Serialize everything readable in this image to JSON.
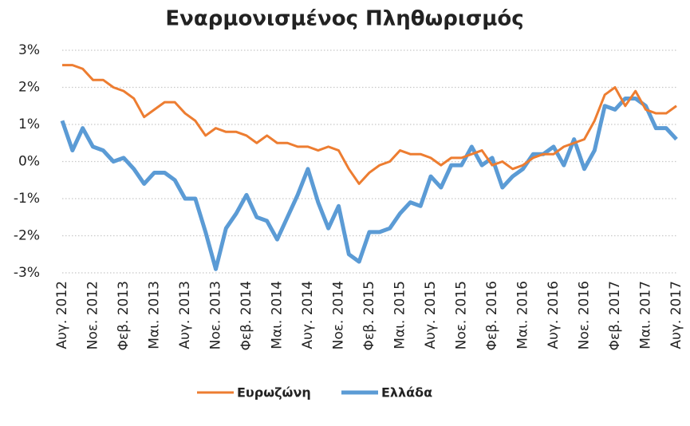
{
  "chart_data": {
    "type": "line",
    "title": "Εναρμονισμένος Πληθωρισμός",
    "categories": [
      "Αυγ. 2012",
      null,
      null,
      "Νοε. 2012",
      null,
      null,
      "Φεβ. 2013",
      null,
      null,
      "Μαι. 2013",
      null,
      null,
      "Αυγ. 2013",
      null,
      null,
      "Νοε. 2013",
      null,
      null,
      "Φεβ. 2014",
      null,
      null,
      "Μαι. 2014",
      null,
      null,
      "Αυγ. 2014",
      null,
      null,
      "Νοε. 2014",
      null,
      null,
      "Φεβ. 2015",
      null,
      null,
      "Μαι. 2015",
      null,
      null,
      "Αυγ. 2015",
      null,
      null,
      "Νοε. 2015",
      null,
      null,
      "Φεβ. 2016",
      null,
      null,
      "Μαι. 2016",
      null,
      null,
      "Αυγ. 2016",
      null,
      null,
      "Νοε. 2016",
      null,
      null,
      "Φεβ. 2017",
      null,
      null,
      "Μαι. 2017",
      null,
      null,
      "Αυγ. 2017"
    ],
    "series": [
      {
        "name": "Ευρωζώνη",
        "color": "#ed7d31",
        "values": [
          2.6,
          2.6,
          2.5,
          2.2,
          2.2,
          2.0,
          1.9,
          1.7,
          1.2,
          1.4,
          1.6,
          1.6,
          1.3,
          1.1,
          0.7,
          0.9,
          0.8,
          0.8,
          0.7,
          0.5,
          0.7,
          0.5,
          0.5,
          0.4,
          0.4,
          0.3,
          0.4,
          0.3,
          -0.2,
          -0.6,
          -0.3,
          -0.1,
          0.0,
          0.3,
          0.2,
          0.2,
          0.1,
          -0.1,
          0.1,
          0.1,
          0.2,
          0.3,
          -0.1,
          0.0,
          -0.2,
          -0.1,
          0.1,
          0.2,
          0.2,
          0.4,
          0.5,
          0.6,
          1.1,
          1.8,
          2.0,
          1.5,
          1.9,
          1.4,
          1.3,
          1.3,
          1.5
        ]
      },
      {
        "name": "Ελλάδα",
        "color": "#5b9bd5",
        "values": [
          1.1,
          0.3,
          0.9,
          0.4,
          0.3,
          0.0,
          0.1,
          -0.2,
          -0.6,
          -0.3,
          -0.3,
          -0.5,
          -1.0,
          -1.0,
          -1.9,
          -2.9,
          -1.8,
          -1.4,
          -0.9,
          -1.5,
          -1.6,
          -2.1,
          -1.5,
          -0.9,
          -0.2,
          -1.1,
          -1.8,
          -1.2,
          -2.5,
          -2.7,
          -1.9,
          -1.9,
          -1.8,
          -1.4,
          -1.1,
          -1.2,
          -0.4,
          -0.7,
          -0.1,
          -0.1,
          0.4,
          -0.1,
          0.1,
          -0.7,
          -0.4,
          -0.2,
          0.2,
          0.2,
          0.4,
          -0.1,
          0.6,
          -0.2,
          0.3,
          1.5,
          1.4,
          1.7,
          1.7,
          1.5,
          0.9,
          0.9,
          0.6
        ]
      }
    ],
    "ylim": [
      -3,
      3
    ],
    "yticks": [
      {
        "value": -3,
        "label": "-3%"
      },
      {
        "value": -2,
        "label": "-2%"
      },
      {
        "value": -1,
        "label": "-1%"
      },
      {
        "value": 0,
        "label": "0%"
      },
      {
        "value": 1,
        "label": "1%"
      },
      {
        "value": 2,
        "label": "2%"
      },
      {
        "value": 3,
        "label": "3%"
      }
    ],
    "grid": true,
    "legend": "bottom"
  }
}
